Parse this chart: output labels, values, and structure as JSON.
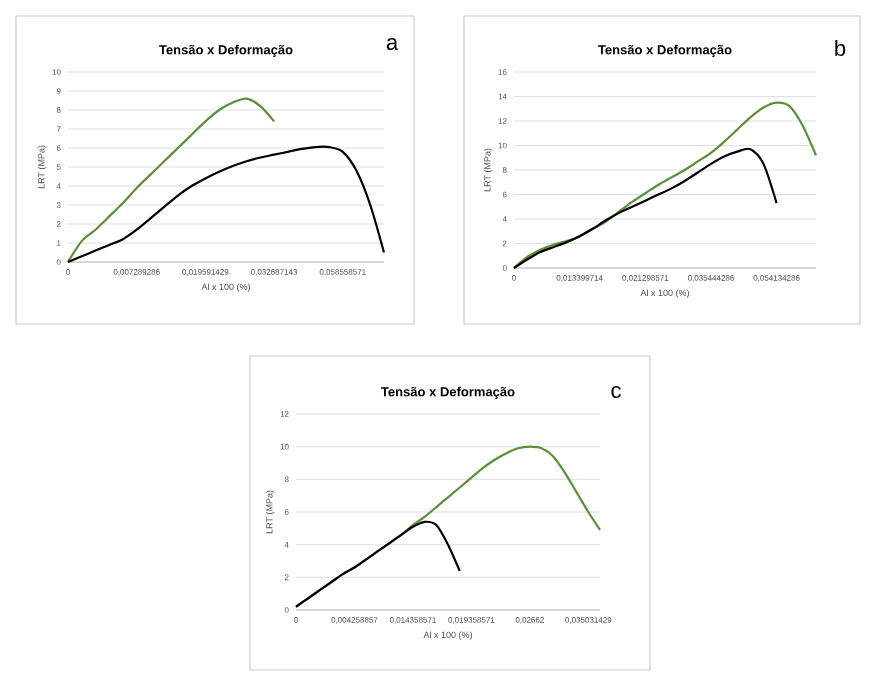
{
  "chart_data": [
    {
      "type": "line",
      "title": "Tensão x Deformação",
      "xlabel": "Al x 100 (%)",
      "ylabel": "LRT (MPa)",
      "annotations": [
        "a"
      ],
      "categories": [
        "0",
        null,
        null,
        null,
        null,
        "0,007289286",
        null,
        null,
        null,
        null,
        "0,019591429",
        null,
        null,
        null,
        null,
        "0,032687143",
        null,
        null,
        null,
        null,
        "0,058558571",
        null,
        null,
        null
      ],
      "series": [
        {
          "color": "#5b8f3a",
          "values": [
            0,
            1.1,
            1.7,
            2.4,
            3.1,
            3.9,
            4.6,
            5.3,
            6.0,
            6.7,
            7.4,
            8.0,
            8.4,
            8.6,
            8.2,
            7.4,
            null,
            null,
            null,
            null,
            null,
            null,
            null,
            null
          ]
        },
        {
          "color": "#000000",
          "values": [
            0,
            0.3,
            0.6,
            0.9,
            1.2,
            1.7,
            2.3,
            2.9,
            3.5,
            4.0,
            4.4,
            4.75,
            5.05,
            5.3,
            5.5,
            5.65,
            5.8,
            5.95,
            6.05,
            6.05,
            5.8,
            4.8,
            3.0,
            0.5
          ]
        }
      ],
      "ylim": [
        0,
        10
      ],
      "yticks": [
        0,
        1,
        2,
        3,
        4,
        5,
        6,
        7,
        8,
        9,
        10
      ],
      "grid": "y"
    },
    {
      "type": "line",
      "title": "Tensão x Deformação",
      "xlabel": "Al x 100 (%)",
      "ylabel": "LRT (MPa)",
      "annotations": [
        "b"
      ],
      "categories": [
        "0",
        null,
        null,
        null,
        null,
        "0,013399714",
        null,
        null,
        null,
        null,
        "0,021298571",
        null,
        null,
        null,
        null,
        "0,035444286",
        null,
        null,
        null,
        null,
        "0,054134286",
        null,
        null,
        null
      ],
      "series": [
        {
          "color": "#5b8f3a",
          "values": [
            0,
            0.9,
            1.5,
            1.9,
            2.2,
            2.6,
            3.2,
            3.8,
            4.6,
            5.4,
            6.1,
            6.8,
            7.4,
            8.0,
            8.7,
            9.4,
            10.3,
            11.3,
            12.3,
            13.1,
            13.5,
            13.2,
            11.6,
            9.2
          ]
        },
        {
          "color": "#000000",
          "values": [
            0,
            0.7,
            1.3,
            1.7,
            2.1,
            2.6,
            3.2,
            3.9,
            4.5,
            5.0,
            5.5,
            6.0,
            6.5,
            7.1,
            7.8,
            8.5,
            9.1,
            9.5,
            9.7,
            8.5,
            5.3,
            null,
            null,
            null
          ]
        }
      ],
      "ylim": [
        0,
        16
      ],
      "yticks": [
        0,
        2,
        4,
        6,
        8,
        10,
        12,
        14,
        16
      ],
      "grid": "y"
    },
    {
      "type": "line",
      "title": "Tensão x Deformação",
      "xlabel": "Al x 100 (%)",
      "ylabel": "LRT (MPa)",
      "annotations": [
        "c"
      ],
      "categories": [
        "0",
        null,
        null,
        null,
        null,
        "0,004258857",
        null,
        null,
        null,
        null,
        "0,014358571",
        null,
        null,
        null,
        null,
        "0,019358571",
        null,
        null,
        null,
        null,
        "0,02662",
        null,
        null,
        null,
        null,
        "0,035031429",
        null
      ],
      "series": [
        {
          "color": "#5b8f3a",
          "values": [
            0.2,
            0.7,
            1.2,
            1.7,
            2.2,
            2.6,
            3.1,
            3.6,
            4.1,
            4.6,
            5.2,
            5.7,
            6.3,
            6.9,
            7.5,
            8.1,
            8.7,
            9.2,
            9.6,
            9.9,
            10.0,
            9.9,
            9.4,
            8.4,
            7.2,
            6.0,
            4.9
          ]
        },
        {
          "color": "#000000",
          "values": [
            0.2,
            0.7,
            1.2,
            1.7,
            2.2,
            2.6,
            3.1,
            3.6,
            4.1,
            4.6,
            5.1,
            5.4,
            5.2,
            4.0,
            2.4,
            null,
            null,
            null,
            null,
            null,
            null,
            null,
            null,
            null,
            null,
            null,
            null
          ]
        }
      ],
      "ylim": [
        0,
        12
      ],
      "yticks": [
        0,
        2,
        4,
        6,
        8,
        10,
        12
      ],
      "grid": "y"
    }
  ]
}
